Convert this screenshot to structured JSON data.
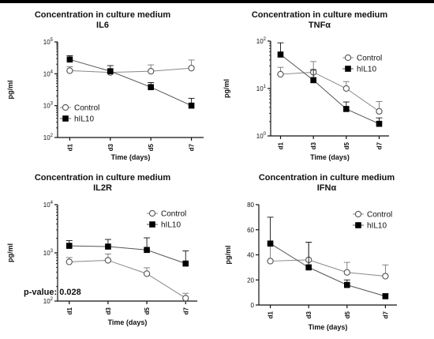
{
  "chart_data": [
    {
      "type": "line",
      "title": "Concentration in culture medium",
      "subtitle": "IL6",
      "xlabel": "Time (days)",
      "ylabel": "pg/ml",
      "y_scale": "log",
      "ylim": [
        100,
        100000
      ],
      "yticks": [
        100,
        1000,
        10000,
        100000
      ],
      "ytick_labels": [
        [
          "10",
          "2"
        ],
        [
          "10",
          "3"
        ],
        [
          "10",
          "4"
        ],
        [
          "10",
          "5"
        ]
      ],
      "categories": [
        "d1",
        "d3",
        "d5",
        "d7"
      ],
      "legend_position": "bottom-left",
      "series": [
        {
          "name": "Control",
          "marker": "open-circle",
          "values": [
            12500,
            11000,
            12000,
            15000
          ],
          "errors": [
            4000,
            3000,
            7000,
            12000
          ]
        },
        {
          "name": "hIL10",
          "marker": "filled-square",
          "values": [
            28000,
            12000,
            3800,
            1000
          ],
          "errors": [
            9000,
            6000,
            1500,
            700
          ]
        }
      ]
    },
    {
      "type": "line",
      "title": "Concentration in culture medium",
      "subtitle": "TNFα",
      "xlabel": "Time (days)",
      "ylabel": "pg/ml",
      "y_scale": "log",
      "ylim": [
        1,
        100
      ],
      "yticks": [
        1,
        10,
        100
      ],
      "ytick_labels": [
        [
          "10",
          "0"
        ],
        [
          "10",
          "1"
        ],
        [
          "10",
          "2"
        ]
      ],
      "categories": [
        "d1",
        "d3",
        "d5",
        "d7"
      ],
      "legend_position": "top-right",
      "series": [
        {
          "name": "Control",
          "marker": "open-circle",
          "values": [
            20,
            22,
            10,
            3.3
          ],
          "errors": [
            8,
            15,
            4,
            2
          ]
        },
        {
          "name": "hIL10",
          "marker": "filled-square",
          "values": [
            52,
            15,
            3.7,
            1.8
          ],
          "errors": [
            40,
            10,
            1.5,
            0.6
          ]
        }
      ]
    },
    {
      "type": "line",
      "title": "Concentration in culture medium",
      "subtitle": "IL2R",
      "xlabel": "Time (days)",
      "ylabel": "pg/ml",
      "y_scale": "log",
      "ylim": [
        100,
        10000
      ],
      "yticks": [
        100,
        1000,
        10000
      ],
      "ytick_labels": [
        [
          "10",
          "2"
        ],
        [
          "10",
          "3"
        ],
        [
          "10",
          "4"
        ]
      ],
      "categories": [
        "d1",
        "d3",
        "d5",
        "d7"
      ],
      "legend_position": "top-right",
      "annotation": "p-value: 0.028",
      "series": [
        {
          "name": "Control",
          "marker": "open-circle",
          "values": [
            650,
            700,
            370,
            115
          ],
          "errors": [
            150,
            250,
            120,
            30
          ]
        },
        {
          "name": "hIL10",
          "marker": "filled-square",
          "values": [
            1400,
            1350,
            1150,
            600
          ],
          "errors": [
            400,
            550,
            900,
            500
          ]
        }
      ]
    },
    {
      "type": "line",
      "title": "Concentration in culture medium",
      "subtitle": "IFNα",
      "xlabel": "Time (days)",
      "ylabel": "pg/ml",
      "y_scale": "linear",
      "ylim": [
        0,
        80
      ],
      "yticks": [
        0,
        20,
        40,
        60,
        80
      ],
      "ytick_labels": [
        "0",
        "20",
        "40",
        "60",
        "80"
      ],
      "categories": [
        "d1",
        "d3",
        "d5",
        "d7"
      ],
      "legend_position": "top-right",
      "series": [
        {
          "name": "Control",
          "marker": "open-circle",
          "values": [
            35,
            36,
            26,
            23
          ],
          "errors": [
            14,
            14,
            8,
            9
          ]
        },
        {
          "name": "hIL10",
          "marker": "filled-square",
          "values": [
            49,
            30,
            16,
            7
          ],
          "errors": [
            21,
            20,
            4,
            2
          ]
        }
      ]
    }
  ]
}
